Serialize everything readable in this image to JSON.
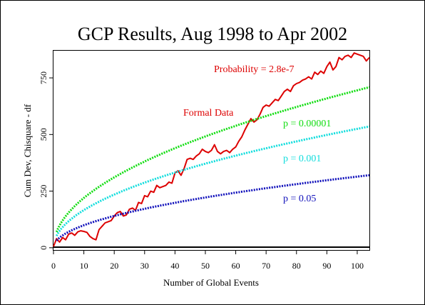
{
  "chart_data": {
    "type": "line",
    "title": "GCP Results, Aug 1998 to Apr 2002",
    "xlabel": "Number of Global Events",
    "ylabel": "Cum Dev, Chisquare - df",
    "xlim": [
      0,
      104
    ],
    "ylim": [
      -10,
      870
    ],
    "x_ticks": [
      0,
      10,
      20,
      30,
      40,
      50,
      60,
      70,
      80,
      90,
      100
    ],
    "y_ticks": [
      0,
      250,
      500,
      750
    ],
    "grid": false,
    "series": [
      {
        "name": "Formal Data",
        "color": "#dd0000",
        "style": "solid",
        "points": [
          [
            0,
            5
          ],
          [
            1,
            40
          ],
          [
            2,
            25
          ],
          [
            3,
            45
          ],
          [
            4,
            35
          ],
          [
            5,
            60
          ],
          [
            6,
            65
          ],
          [
            7,
            55
          ],
          [
            8,
            70
          ],
          [
            9,
            75
          ],
          [
            10,
            72
          ],
          [
            11,
            68
          ],
          [
            12,
            50
          ],
          [
            13,
            40
          ],
          [
            14,
            35
          ],
          [
            15,
            80
          ],
          [
            16,
            95
          ],
          [
            17,
            110
          ],
          [
            18,
            115
          ],
          [
            19,
            120
          ],
          [
            20,
            140
          ],
          [
            21,
            155
          ],
          [
            22,
            160
          ],
          [
            23,
            140
          ],
          [
            24,
            145
          ],
          [
            25,
            170
          ],
          [
            26,
            175
          ],
          [
            27,
            165
          ],
          [
            28,
            200
          ],
          [
            29,
            195
          ],
          [
            30,
            230
          ],
          [
            31,
            225
          ],
          [
            32,
            250
          ],
          [
            33,
            245
          ],
          [
            34,
            275
          ],
          [
            35,
            265
          ],
          [
            36,
            270
          ],
          [
            37,
            275
          ],
          [
            38,
            290
          ],
          [
            39,
            285
          ],
          [
            40,
            330
          ],
          [
            41,
            340
          ],
          [
            42,
            320
          ],
          [
            43,
            350
          ],
          [
            44,
            390
          ],
          [
            45,
            395
          ],
          [
            46,
            390
          ],
          [
            47,
            405
          ],
          [
            48,
            415
          ],
          [
            49,
            435
          ],
          [
            50,
            425
          ],
          [
            51,
            420
          ],
          [
            52,
            430
          ],
          [
            53,
            455
          ],
          [
            54,
            425
          ],
          [
            55,
            415
          ],
          [
            56,
            425
          ],
          [
            57,
            430
          ],
          [
            58,
            420
          ],
          [
            59,
            435
          ],
          [
            60,
            445
          ],
          [
            61,
            470
          ],
          [
            62,
            490
          ],
          [
            63,
            520
          ],
          [
            64,
            545
          ],
          [
            65,
            570
          ],
          [
            66,
            555
          ],
          [
            67,
            565
          ],
          [
            68,
            590
          ],
          [
            69,
            620
          ],
          [
            70,
            630
          ],
          [
            71,
            625
          ],
          [
            72,
            640
          ],
          [
            73,
            655
          ],
          [
            74,
            650
          ],
          [
            75,
            670
          ],
          [
            76,
            690
          ],
          [
            77,
            700
          ],
          [
            78,
            690
          ],
          [
            79,
            715
          ],
          [
            80,
            725
          ],
          [
            81,
            730
          ],
          [
            82,
            740
          ],
          [
            83,
            745
          ],
          [
            84,
            755
          ],
          [
            85,
            745
          ],
          [
            86,
            775
          ],
          [
            87,
            765
          ],
          [
            88,
            780
          ],
          [
            89,
            770
          ],
          [
            90,
            800
          ],
          [
            91,
            820
          ],
          [
            92,
            785
          ],
          [
            93,
            800
          ],
          [
            94,
            840
          ],
          [
            95,
            830
          ],
          [
            96,
            845
          ],
          [
            97,
            850
          ],
          [
            98,
            840
          ],
          [
            99,
            860
          ],
          [
            100,
            855
          ],
          [
            101,
            850
          ],
          [
            102,
            845
          ],
          [
            103,
            825
          ],
          [
            104,
            840
          ]
        ]
      },
      {
        "name": "p = 0.00001",
        "color": "#11dd11",
        "style": "dotted",
        "coef": 69.5
      },
      {
        "name": "p = 0.001",
        "color": "#11dddd",
        "style": "dotted",
        "coef": 52.5
      },
      {
        "name": "p = 0.05",
        "color": "#1111bb",
        "style": "dotted",
        "coef": 31.4
      }
    ],
    "annotations": [
      {
        "text": "Probability = 2.8e-7",
        "color": "#dd0000"
      },
      {
        "text": "Formal Data",
        "color": "#dd0000"
      },
      {
        "text": "p = 0.00001",
        "color": "#11dd11"
      },
      {
        "text": "p = 0.001",
        "color": "#11dddd"
      },
      {
        "text": "p = 0.05",
        "color": "#1111bb"
      }
    ]
  }
}
